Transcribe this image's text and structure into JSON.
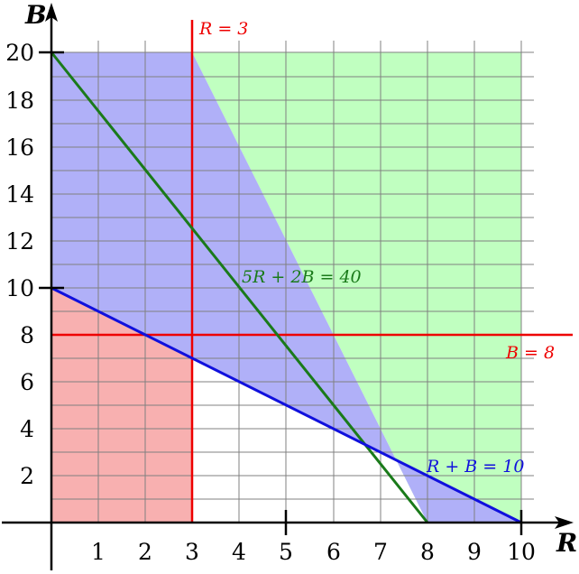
{
  "axes": {
    "x_label": "R",
    "y_label": "B",
    "x_ticks": [
      "1",
      "2",
      "3",
      "4",
      "5",
      "6",
      "7",
      "8",
      "9",
      "10"
    ],
    "y_ticks": [
      "2",
      "4",
      "6",
      "8",
      "10",
      "12",
      "14",
      "16",
      "18",
      "20"
    ]
  },
  "lines": {
    "vertical_r3": "R = 3",
    "horizontal_b8": "B = 8",
    "green_line": "5R + 2B = 40",
    "blue_line": "R + B = 10"
  },
  "colors": {
    "red_line": "#ee0000",
    "green_line": "#1a7a1a",
    "blue_line": "#1010dd",
    "green_fill": "#c0ffc0",
    "blue_fill": "#b0b0f8",
    "red_fill": "#f8b0b0",
    "grid": "#808080"
  }
}
